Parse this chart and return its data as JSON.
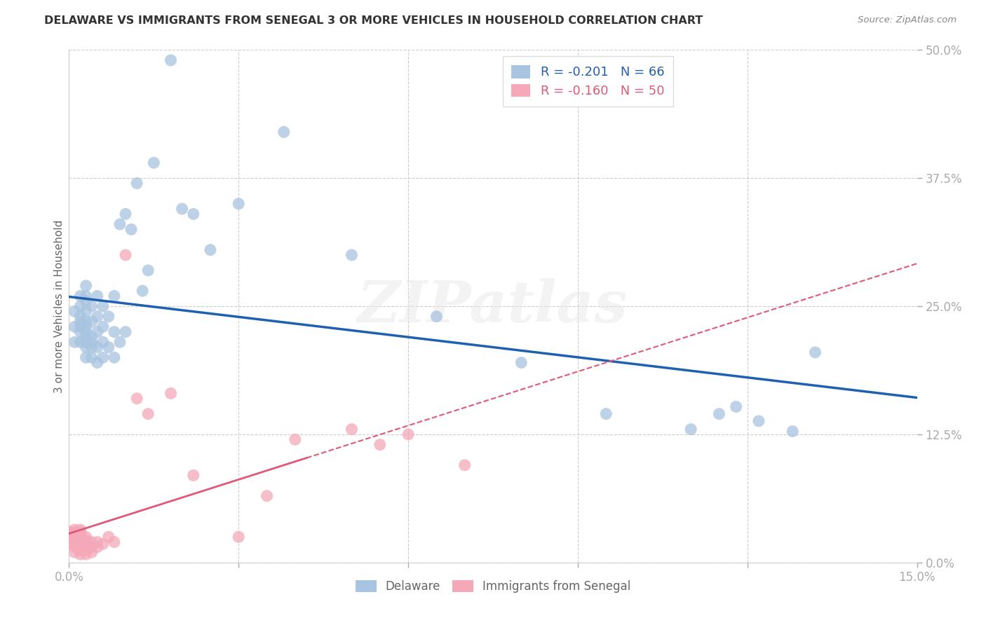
{
  "title": "DELAWARE VS IMMIGRANTS FROM SENEGAL 3 OR MORE VEHICLES IN HOUSEHOLD CORRELATION CHART",
  "source": "Source: ZipAtlas.com",
  "ylabel": "3 or more Vehicles in Household",
  "xlabel": "",
  "xlim": [
    0.0,
    0.15
  ],
  "ylim": [
    0.0,
    0.5
  ],
  "xticks": [
    0.0,
    0.03,
    0.06,
    0.09,
    0.12,
    0.15
  ],
  "yticks": [
    0.0,
    0.125,
    0.25,
    0.375,
    0.5
  ],
  "xticklabels": [
    "0.0%",
    "",
    "",
    "",
    "",
    "15.0%"
  ],
  "yticklabels_right": [
    "50.0%",
    "37.5%",
    "25.0%",
    "12.5%",
    "0.0%"
  ],
  "delaware_R": -0.201,
  "delaware_N": 66,
  "senegal_R": -0.16,
  "senegal_N": 50,
  "delaware_color": "#a8c4e0",
  "senegal_color": "#f4a8b8",
  "delaware_line_color": "#2060b0",
  "senegal_line_color": "#e05878",
  "legend_label_delaware": "Delaware",
  "legend_label_senegal": "Immigrants from Senegal",
  "background_color": "#ffffff",
  "watermark": "ZIPatlas",
  "tick_color": "#4472c4",
  "delaware_x": [
    0.001,
    0.001,
    0.001,
    0.002,
    0.002,
    0.002,
    0.002,
    0.002,
    0.002,
    0.002,
    0.003,
    0.003,
    0.003,
    0.003,
    0.003,
    0.003,
    0.003,
    0.003,
    0.003,
    0.003,
    0.003,
    0.004,
    0.004,
    0.004,
    0.004,
    0.004,
    0.004,
    0.005,
    0.005,
    0.005,
    0.005,
    0.005,
    0.006,
    0.006,
    0.006,
    0.006,
    0.007,
    0.007,
    0.008,
    0.008,
    0.008,
    0.009,
    0.009,
    0.01,
    0.01,
    0.011,
    0.012,
    0.013,
    0.014,
    0.015,
    0.018,
    0.02,
    0.022,
    0.025,
    0.03,
    0.038,
    0.05,
    0.065,
    0.08,
    0.095,
    0.11,
    0.115,
    0.118,
    0.122,
    0.128,
    0.132
  ],
  "delaware_y": [
    0.215,
    0.23,
    0.245,
    0.215,
    0.225,
    0.23,
    0.235,
    0.24,
    0.25,
    0.26,
    0.2,
    0.21,
    0.215,
    0.22,
    0.225,
    0.23,
    0.235,
    0.245,
    0.255,
    0.26,
    0.27,
    0.2,
    0.21,
    0.215,
    0.22,
    0.235,
    0.25,
    0.195,
    0.21,
    0.225,
    0.24,
    0.26,
    0.2,
    0.215,
    0.23,
    0.25,
    0.21,
    0.24,
    0.2,
    0.225,
    0.26,
    0.215,
    0.33,
    0.225,
    0.34,
    0.325,
    0.37,
    0.265,
    0.285,
    0.39,
    0.49,
    0.345,
    0.34,
    0.305,
    0.35,
    0.42,
    0.3,
    0.24,
    0.195,
    0.145,
    0.13,
    0.145,
    0.152,
    0.138,
    0.128,
    0.205
  ],
  "senegal_x": [
    0.0,
    0.0,
    0.0,
    0.0,
    0.001,
    0.001,
    0.001,
    0.001,
    0.001,
    0.001,
    0.001,
    0.001,
    0.001,
    0.002,
    0.002,
    0.002,
    0.002,
    0.002,
    0.002,
    0.002,
    0.002,
    0.002,
    0.002,
    0.003,
    0.003,
    0.003,
    0.003,
    0.003,
    0.003,
    0.003,
    0.004,
    0.004,
    0.004,
    0.005,
    0.005,
    0.006,
    0.007,
    0.008,
    0.01,
    0.012,
    0.014,
    0.018,
    0.022,
    0.03,
    0.035,
    0.04,
    0.05,
    0.055,
    0.06,
    0.07
  ],
  "senegal_y": [
    0.02,
    0.025,
    0.028,
    0.03,
    0.01,
    0.015,
    0.018,
    0.02,
    0.022,
    0.025,
    0.028,
    0.03,
    0.032,
    0.008,
    0.012,
    0.015,
    0.018,
    0.02,
    0.022,
    0.025,
    0.028,
    0.03,
    0.032,
    0.008,
    0.012,
    0.015,
    0.018,
    0.02,
    0.022,
    0.025,
    0.01,
    0.015,
    0.02,
    0.015,
    0.02,
    0.018,
    0.025,
    0.02,
    0.3,
    0.16,
    0.145,
    0.165,
    0.085,
    0.025,
    0.065,
    0.12,
    0.13,
    0.115,
    0.125,
    0.095
  ]
}
